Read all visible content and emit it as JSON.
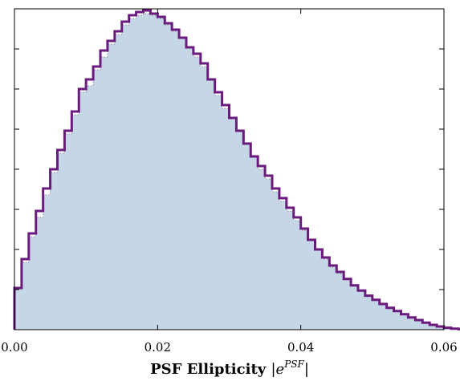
{
  "chart_data": {
    "type": "histogram",
    "xlabel_main": "PSF Ellipticity ",
    "xlabel_math_base": "|e",
    "xlabel_math_sup": "PSF",
    "xlabel_math_end": "|",
    "ylabel": "",
    "xlim": [
      0.0,
      0.06
    ],
    "ylim": [
      0,
      1.0
    ],
    "xticks": [
      0.0,
      0.02,
      0.04,
      0.06
    ],
    "xtick_labels": [
      "0.00",
      "0.02",
      "0.04",
      "0.06"
    ],
    "yticks": [
      0.125,
      0.25,
      0.375,
      0.5,
      0.625,
      0.75,
      0.875
    ],
    "bin_width": 0.001,
    "grid": false,
    "colors": {
      "fill": "#c5d6e7",
      "outline": "#6b1a7e",
      "dots": "#8f8f9f"
    },
    "series": [
      {
        "name": "",
        "style": "filled",
        "values": [
          0.13,
          0.21,
          0.29,
          0.35,
          0.42,
          0.49,
          0.55,
          0.61,
          0.67,
          0.74,
          0.76,
          0.81,
          0.85,
          0.89,
          0.92,
          0.95,
          0.97,
          0.98,
          0.985,
          0.98,
          0.97,
          0.95,
          0.93,
          0.91,
          0.88,
          0.85,
          0.82,
          0.78,
          0.73,
          0.69,
          0.66,
          0.62,
          0.58,
          0.54,
          0.5,
          0.47,
          0.43,
          0.4,
          0.37,
          0.34,
          0.31,
          0.28,
          0.25,
          0.22,
          0.195,
          0.175,
          0.155,
          0.135,
          0.12,
          0.105,
          0.09,
          0.078,
          0.068,
          0.058,
          0.048,
          0.038,
          0.029,
          0.02,
          0.013,
          0.008,
          0.004,
          0.002,
          0.001,
          0.0005,
          0.0002
        ]
      },
      {
        "name": "",
        "style": "step",
        "values": [
          0.13,
          0.22,
          0.3,
          0.37,
          0.44,
          0.5,
          0.56,
          0.62,
          0.68,
          0.75,
          0.78,
          0.82,
          0.87,
          0.9,
          0.93,
          0.96,
          0.98,
          0.99,
          0.995,
          0.985,
          0.975,
          0.955,
          0.935,
          0.91,
          0.88,
          0.86,
          0.83,
          0.78,
          0.74,
          0.7,
          0.66,
          0.62,
          0.58,
          0.54,
          0.51,
          0.48,
          0.44,
          0.41,
          0.38,
          0.35,
          0.315,
          0.28,
          0.25,
          0.225,
          0.2,
          0.18,
          0.158,
          0.138,
          0.122,
          0.106,
          0.093,
          0.08,
          0.068,
          0.058,
          0.048,
          0.038,
          0.03,
          0.022,
          0.015,
          0.01,
          0.006,
          0.003,
          0.0015,
          0.0008,
          0.0002
        ]
      }
    ]
  }
}
